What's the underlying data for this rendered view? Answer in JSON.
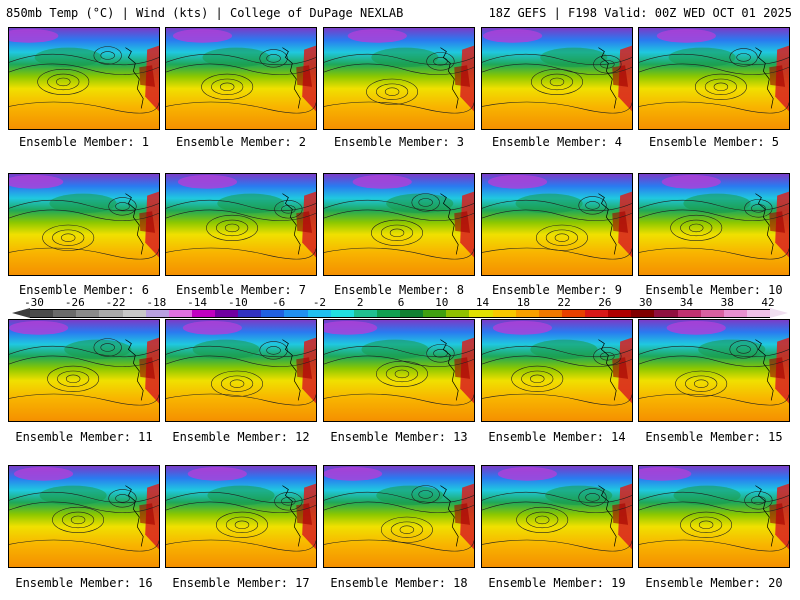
{
  "header": {
    "left": "850mb Temp (°C) | Wind (kts) | College of DuPage NEXLAB",
    "right": "18Z GEFS | F198 Valid: 00Z WED OCT 01 2025"
  },
  "panels": [
    {
      "label": "Ensemble Member: 1"
    },
    {
      "label": "Ensemble Member: 2"
    },
    {
      "label": "Ensemble Member: 3"
    },
    {
      "label": "Ensemble Member: 4"
    },
    {
      "label": "Ensemble Member: 5"
    },
    {
      "label": "Ensemble Member: 6"
    },
    {
      "label": "Ensemble Member: 7"
    },
    {
      "label": "Ensemble Member: 8"
    },
    {
      "label": "Ensemble Member: 9"
    },
    {
      "label": "Ensemble Member: 10"
    },
    {
      "label": "Ensemble Member: 11"
    },
    {
      "label": "Ensemble Member: 12"
    },
    {
      "label": "Ensemble Member: 13"
    },
    {
      "label": "Ensemble Member: 14"
    },
    {
      "label": "Ensemble Member: 15"
    },
    {
      "label": "Ensemble Member: 16"
    },
    {
      "label": "Ensemble Member: 17"
    },
    {
      "label": "Ensemble Member: 18"
    },
    {
      "label": "Ensemble Member: 19"
    },
    {
      "label": "Ensemble Member: 20"
    }
  ],
  "colorbar": {
    "ticks": [
      "-30",
      "-26",
      "-22",
      "-18",
      "-14",
      "-10",
      "-6",
      "-2",
      "2",
      "6",
      "10",
      "14",
      "18",
      "22",
      "26",
      "30",
      "34",
      "38",
      "42"
    ],
    "colors": [
      "#4a4a4a",
      "#6a6a6a",
      "#8a8a8a",
      "#aaaaaa",
      "#c8c8c8",
      "#b8a0e0",
      "#e070e0",
      "#c000c0",
      "#7000a0",
      "#3030c0",
      "#2060e0",
      "#2090f0",
      "#20c0f0",
      "#20e0e0",
      "#20c090",
      "#10a050",
      "#108030",
      "#40a010",
      "#90c000",
      "#e0e000",
      "#f8c800",
      "#f8a000",
      "#f07800",
      "#e84000",
      "#d81818",
      "#b00000",
      "#800000",
      "#901040",
      "#c03070",
      "#d860a0",
      "#e890d0",
      "#f0c0e8"
    ]
  }
}
